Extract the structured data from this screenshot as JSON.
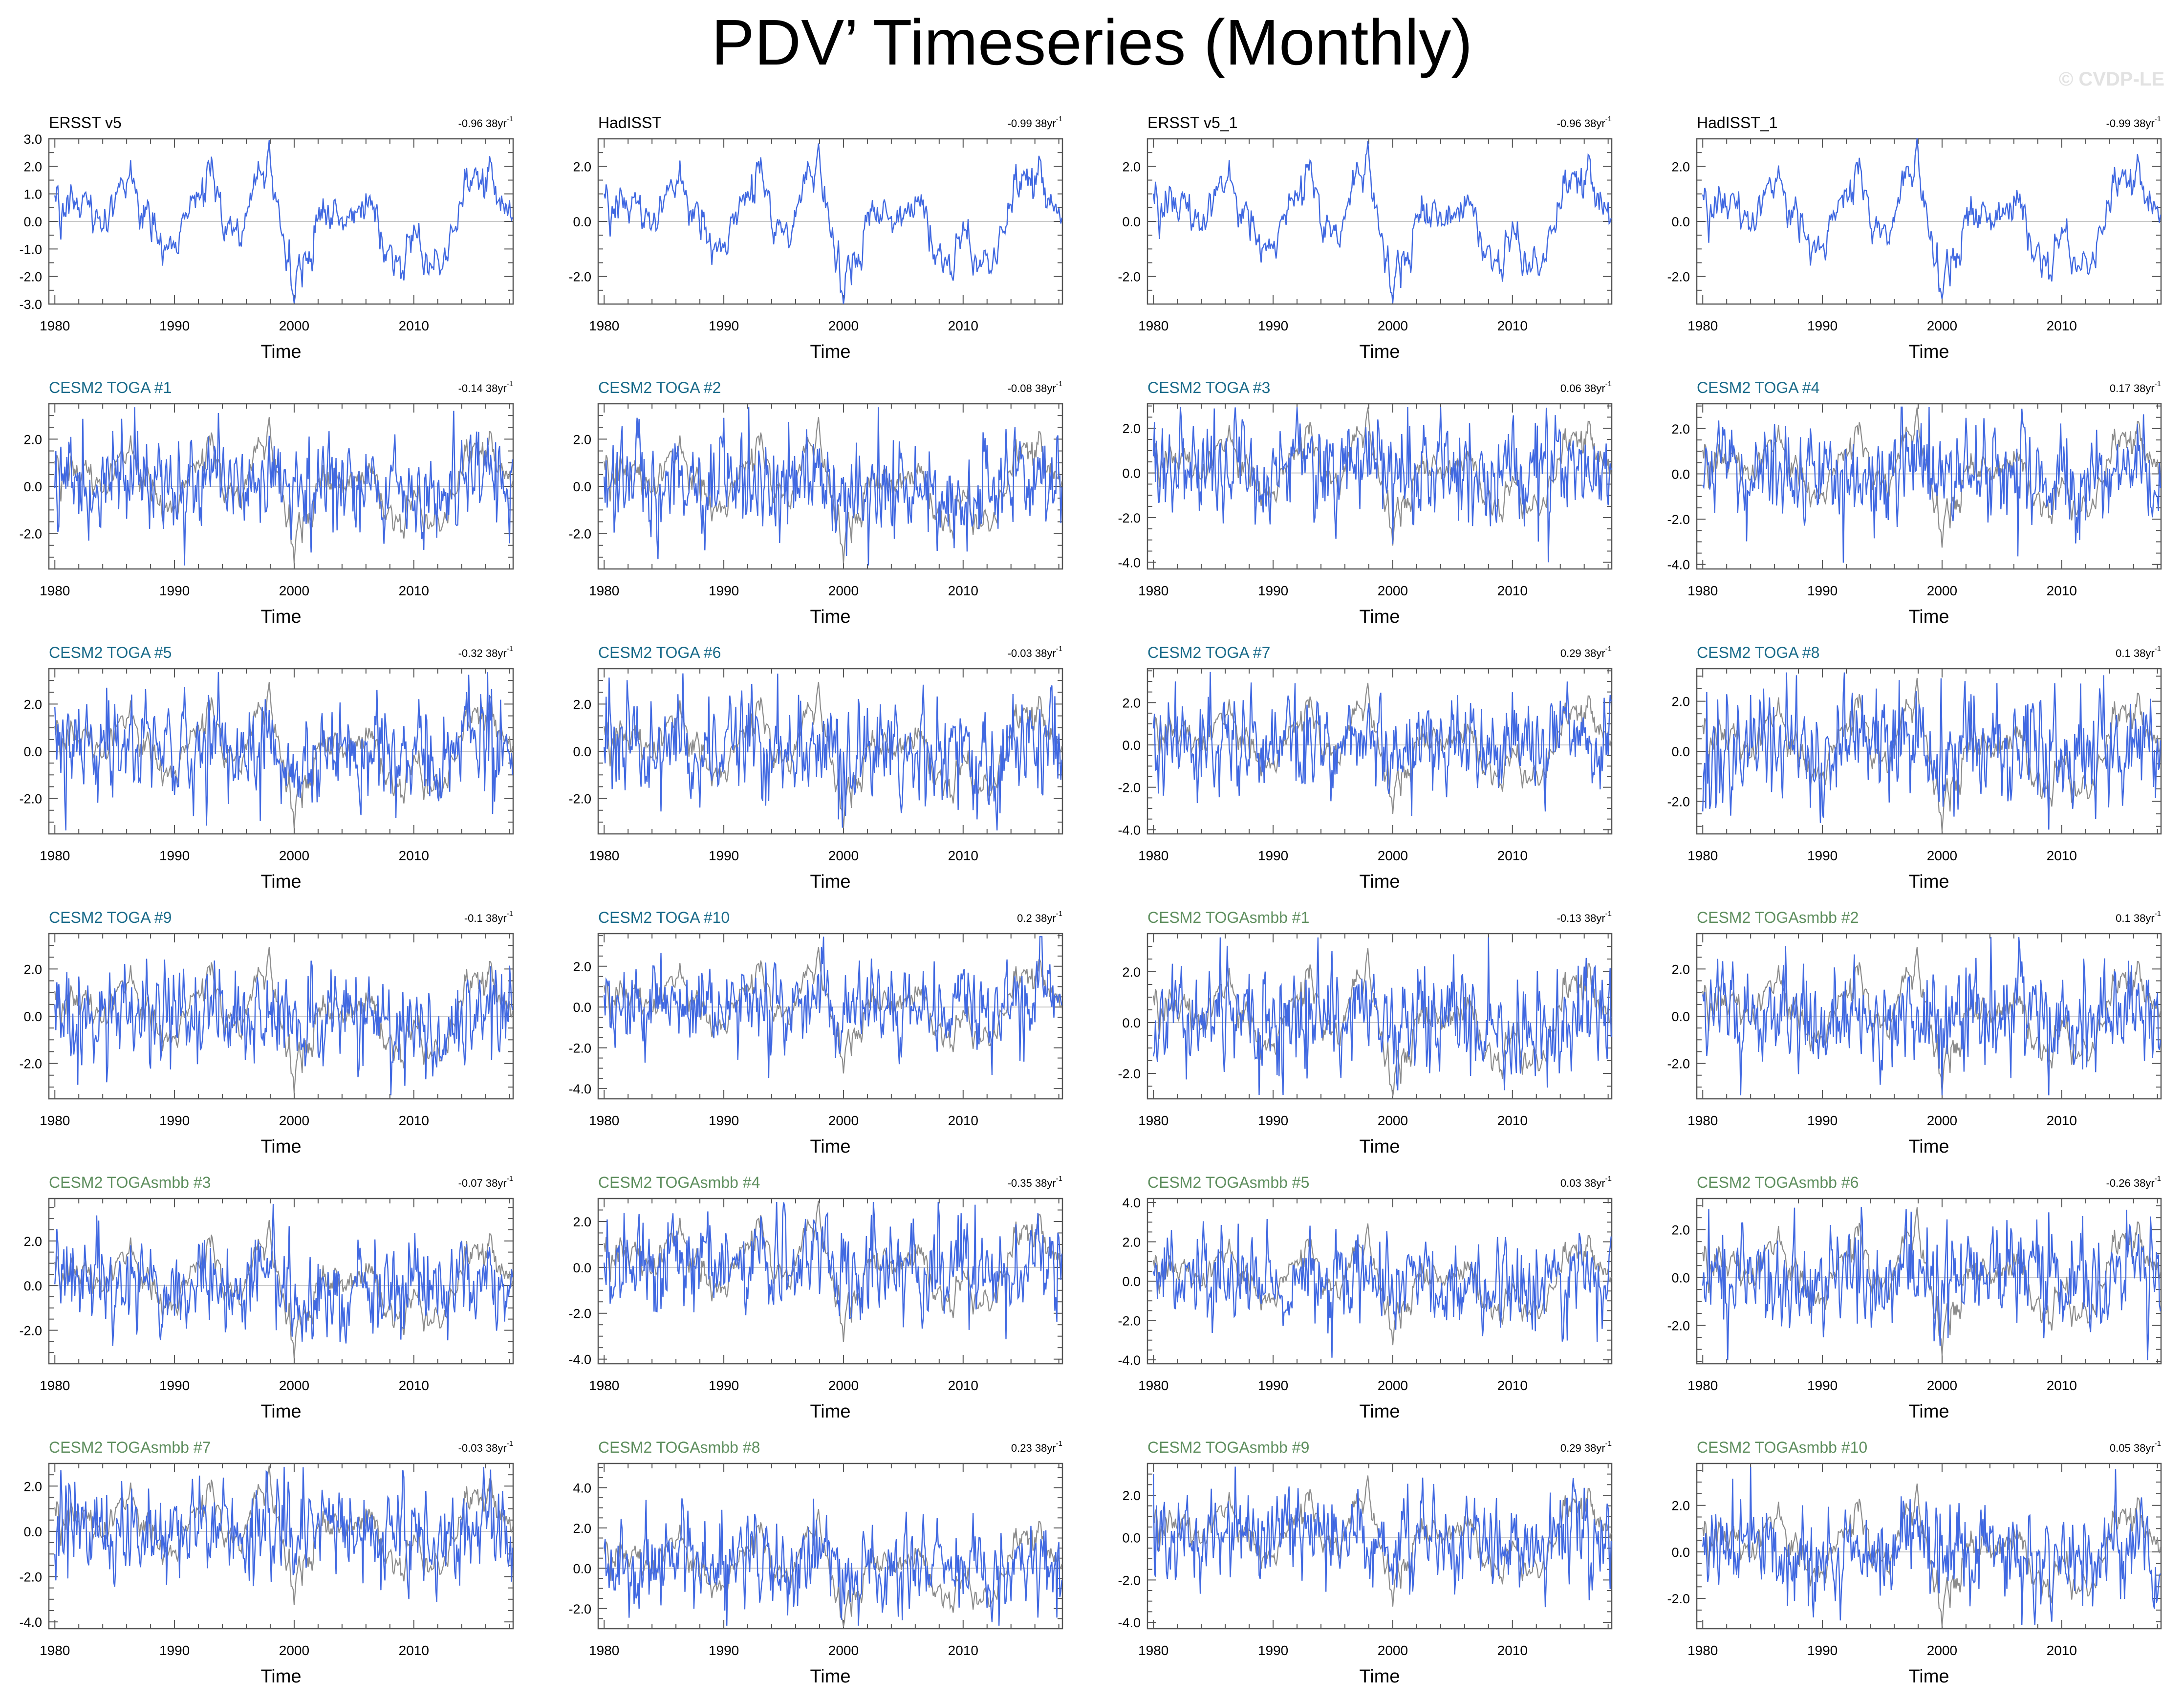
{
  "title": "PDV’ Timeseries (Monthly)",
  "copyright": "© CVDP-LE",
  "colors": {
    "series": "#4169e1",
    "observed": "#8c8c8c",
    "zero_line": "#c8c8c8",
    "obs_label": "#000000",
    "toga_label": "#1a6b8a",
    "togasmbb_label": "#5f8f5f"
  },
  "chart_data": [
    {
      "type": "line",
      "title": "ERSST v5",
      "trend": "-0.96 38yr",
      "trend_exp": "-1",
      "label_group": "obs",
      "xlabel": "Time",
      "xlim": [
        1979.5,
        2018.3
      ],
      "xticks": [
        1980,
        1990,
        2000,
        2010
      ],
      "ylim": [
        -3,
        3
      ],
      "yticks": [
        "3.0",
        "2.0",
        "1.0",
        "0.0",
        "-1.0",
        "-2.0",
        "-3.0"
      ],
      "ytick_values": [
        3,
        2,
        1,
        0,
        -1,
        -2,
        -3
      ],
      "seed": 11,
      "noise": 0.25,
      "obs_weight": 1.0,
      "spikes": 0
    },
    {
      "type": "line",
      "title": "HadISST",
      "trend": "-0.99 38yr",
      "trend_exp": "-1",
      "label_group": "obs",
      "xlabel": "Time",
      "xlim": [
        1979.5,
        2018.3
      ],
      "xticks": [
        1980,
        1990,
        2000,
        2010
      ],
      "ylim": [
        -3,
        3
      ],
      "yticks": [
        "2.0",
        "0.0",
        "-2.0"
      ],
      "ytick_values": [
        2,
        0,
        -2
      ],
      "seed": 12,
      "noise": 0.25,
      "obs_weight": 1.0,
      "spikes": 0
    },
    {
      "type": "line",
      "title": "ERSST v5_1",
      "trend": "-0.96 38yr",
      "trend_exp": "-1",
      "label_group": "obs",
      "xlabel": "Time",
      "xlim": [
        1979.5,
        2018.3
      ],
      "xticks": [
        1980,
        1990,
        2000,
        2010
      ],
      "ylim": [
        -3,
        3
      ],
      "yticks": [
        "2.0",
        "0.0",
        "-2.0"
      ],
      "ytick_values": [
        2,
        0,
        -2
      ],
      "seed": 13,
      "noise": 0.25,
      "obs_weight": 1.0,
      "spikes": 0
    },
    {
      "type": "line",
      "title": "HadISST_1",
      "trend": "-0.99 38yr",
      "trend_exp": "-1",
      "label_group": "obs",
      "xlabel": "Time",
      "xlim": [
        1979.5,
        2018.3
      ],
      "xticks": [
        1980,
        1990,
        2000,
        2010
      ],
      "ylim": [
        -3,
        3
      ],
      "yticks": [
        "2.0",
        "0.0",
        "-2.0"
      ],
      "ytick_values": [
        2,
        0,
        -2
      ],
      "seed": 14,
      "noise": 0.25,
      "obs_weight": 1.0,
      "spikes": 0
    },
    {
      "type": "line",
      "title": "CESM2 TOGA #1",
      "trend": "-0.14 38yr",
      "trend_exp": "-1",
      "label_group": "toga",
      "xlabel": "Time",
      "xlim": [
        1979.5,
        2018.3
      ],
      "xticks": [
        1980,
        1990,
        2000,
        2010
      ],
      "ylim": [
        -3.5,
        3.5
      ],
      "yticks": [
        "2.0",
        "0.0",
        "-2.0"
      ],
      "ytick_values": [
        2,
        0,
        -2
      ],
      "seed": 21,
      "noise": 1.0,
      "obs_weight": 0.2,
      "spikes": 12
    },
    {
      "type": "line",
      "title": "CESM2 TOGA #2",
      "trend": "-0.08 38yr",
      "trend_exp": "-1",
      "label_group": "toga",
      "xlabel": "Time",
      "xlim": [
        1979.5,
        2018.3
      ],
      "xticks": [
        1980,
        1990,
        2000,
        2010
      ],
      "ylim": [
        -3.5,
        3.5
      ],
      "yticks": [
        "2.0",
        "0.0",
        "-2.0"
      ],
      "ytick_values": [
        2,
        0,
        -2
      ],
      "seed": 22,
      "noise": 1.0,
      "obs_weight": 0.2,
      "spikes": 12
    },
    {
      "type": "line",
      "title": "CESM2 TOGA #3",
      "trend": "0.06 38yr",
      "trend_exp": "-1",
      "label_group": "toga",
      "xlabel": "Time",
      "xlim": [
        1979.5,
        2018.3
      ],
      "xticks": [
        1980,
        1990,
        2000,
        2010
      ],
      "ylim": [
        -4.3,
        3.1
      ],
      "yticks": [
        "2.0",
        "0.0",
        "-2.0",
        "-4.0"
      ],
      "ytick_values": [
        2,
        0,
        -2,
        -4
      ],
      "seed": 23,
      "noise": 1.0,
      "obs_weight": 0.2,
      "spikes": 14
    },
    {
      "type": "line",
      "title": "CESM2 TOGA #4",
      "trend": "0.17 38yr",
      "trend_exp": "-1",
      "label_group": "toga",
      "xlabel": "Time",
      "xlim": [
        1979.5,
        2018.3
      ],
      "xticks": [
        1980,
        1990,
        2000,
        2010
      ],
      "ylim": [
        -4.2,
        3.1
      ],
      "yticks": [
        "2.0",
        "0.0",
        "-2.0",
        "-4.0"
      ],
      "ytick_values": [
        2,
        0,
        -2,
        -4
      ],
      "seed": 24,
      "noise": 1.0,
      "obs_weight": 0.2,
      "spikes": 14
    },
    {
      "type": "line",
      "title": "CESM2 TOGA #5",
      "trend": "-0.32 38yr",
      "trend_exp": "-1",
      "label_group": "toga",
      "xlabel": "Time",
      "xlim": [
        1979.5,
        2018.3
      ],
      "xticks": [
        1980,
        1990,
        2000,
        2010
      ],
      "ylim": [
        -3.5,
        3.5
      ],
      "yticks": [
        "2.0",
        "0.0",
        "-2.0"
      ],
      "ytick_values": [
        2,
        0,
        -2
      ],
      "seed": 25,
      "noise": 1.0,
      "obs_weight": 0.2,
      "spikes": 12
    },
    {
      "type": "line",
      "title": "CESM2 TOGA #6",
      "trend": "-0.03 38yr",
      "trend_exp": "-1",
      "label_group": "toga",
      "xlabel": "Time",
      "xlim": [
        1979.5,
        2018.3
      ],
      "xticks": [
        1980,
        1990,
        2000,
        2010
      ],
      "ylim": [
        -3.5,
        3.5
      ],
      "yticks": [
        "2.0",
        "0.0",
        "-2.0"
      ],
      "ytick_values": [
        2,
        0,
        -2
      ],
      "seed": 26,
      "noise": 1.0,
      "obs_weight": 0.2,
      "spikes": 12
    },
    {
      "type": "line",
      "title": "CESM2 TOGA #7",
      "trend": "0.29 38yr",
      "trend_exp": "-1",
      "label_group": "toga",
      "xlabel": "Time",
      "xlim": [
        1979.5,
        2018.3
      ],
      "xticks": [
        1980,
        1990,
        2000,
        2010
      ],
      "ylim": [
        -4.2,
        3.6
      ],
      "yticks": [
        "2.0",
        "0.0",
        "-2.0",
        "-4.0"
      ],
      "ytick_values": [
        2,
        0,
        -2,
        -4
      ],
      "seed": 27,
      "noise": 1.0,
      "obs_weight": 0.2,
      "spikes": 14
    },
    {
      "type": "line",
      "title": "CESM2 TOGA #8",
      "trend": "0.1 38yr",
      "trend_exp": "-1",
      "label_group": "toga",
      "xlabel": "Time",
      "xlim": [
        1979.5,
        2018.3
      ],
      "xticks": [
        1980,
        1990,
        2000,
        2010
      ],
      "ylim": [
        -3.3,
        3.3
      ],
      "yticks": [
        "2.0",
        "0.0",
        "-2.0"
      ],
      "ytick_values": [
        2,
        0,
        -2
      ],
      "seed": 28,
      "noise": 1.0,
      "obs_weight": 0.2,
      "spikes": 12
    },
    {
      "type": "line",
      "title": "CESM2 TOGA #9",
      "trend": "-0.1 38yr",
      "trend_exp": "-1",
      "label_group": "toga",
      "xlabel": "Time",
      "xlim": [
        1979.5,
        2018.3
      ],
      "xticks": [
        1980,
        1990,
        2000,
        2010
      ],
      "ylim": [
        -3.5,
        3.5
      ],
      "yticks": [
        "2.0",
        "0.0",
        "-2.0"
      ],
      "ytick_values": [
        2,
        0,
        -2
      ],
      "seed": 29,
      "noise": 1.0,
      "obs_weight": 0.2,
      "spikes": 12
    },
    {
      "type": "line",
      "title": "CESM2 TOGA #10",
      "trend": "0.2 38yr",
      "trend_exp": "-1",
      "label_group": "toga",
      "xlabel": "Time",
      "xlim": [
        1979.5,
        2018.3
      ],
      "xticks": [
        1980,
        1990,
        2000,
        2010
      ],
      "ylim": [
        -4.5,
        3.6
      ],
      "yticks": [
        "2.0",
        "0.0",
        "-2.0",
        "-4.0"
      ],
      "ytick_values": [
        2,
        0,
        -2,
        -4
      ],
      "seed": 30,
      "noise": 1.0,
      "obs_weight": 0.2,
      "spikes": 14
    },
    {
      "type": "line",
      "title": "CESM2 TOGAsmbb #1",
      "trend": "-0.13 38yr",
      "trend_exp": "-1",
      "label_group": "togasmbb",
      "xlabel": "Time",
      "xlim": [
        1979.5,
        2018.3
      ],
      "xticks": [
        1980,
        1990,
        2000,
        2010
      ],
      "ylim": [
        -3.0,
        3.5
      ],
      "yticks": [
        "2.0",
        "0.0",
        "-2.0"
      ],
      "ytick_values": [
        2,
        0,
        -2
      ],
      "seed": 31,
      "noise": 1.0,
      "obs_weight": 0.2,
      "spikes": 12
    },
    {
      "type": "line",
      "title": "CESM2 TOGAsmbb #2",
      "trend": "0.1 38yr",
      "trend_exp": "-1",
      "label_group": "togasmbb",
      "xlabel": "Time",
      "xlim": [
        1979.5,
        2018.3
      ],
      "xticks": [
        1980,
        1990,
        2000,
        2010
      ],
      "ylim": [
        -3.5,
        3.5
      ],
      "yticks": [
        "2.0",
        "0.0",
        "-2.0"
      ],
      "ytick_values": [
        2,
        0,
        -2
      ],
      "seed": 32,
      "noise": 1.0,
      "obs_weight": 0.2,
      "spikes": 12
    },
    {
      "type": "line",
      "title": "CESM2 TOGAsmbb #3",
      "trend": "-0.07 38yr",
      "trend_exp": "-1",
      "label_group": "togasmbb",
      "xlabel": "Time",
      "xlim": [
        1979.5,
        2018.3
      ],
      "xticks": [
        1980,
        1990,
        2000,
        2010
      ],
      "ylim": [
        -3.5,
        3.9
      ],
      "yticks": [
        "2.0",
        "0.0",
        "-2.0"
      ],
      "ytick_values": [
        2,
        0,
        -2
      ],
      "seed": 33,
      "noise": 1.0,
      "obs_weight": 0.2,
      "spikes": 12
    },
    {
      "type": "line",
      "title": "CESM2 TOGAsmbb #4",
      "trend": "-0.35 38yr",
      "trend_exp": "-1",
      "label_group": "togasmbb",
      "xlabel": "Time",
      "xlim": [
        1979.5,
        2018.3
      ],
      "xticks": [
        1980,
        1990,
        2000,
        2010
      ],
      "ylim": [
        -4.2,
        3.0
      ],
      "yticks": [
        "2.0",
        "0.0",
        "-2.0",
        "-4.0"
      ],
      "ytick_values": [
        2,
        0,
        -2,
        -4
      ],
      "seed": 34,
      "noise": 1.0,
      "obs_weight": 0.2,
      "spikes": 14
    },
    {
      "type": "line",
      "title": "CESM2 TOGAsmbb #5",
      "trend": "0.03 38yr",
      "trend_exp": "-1",
      "label_group": "togasmbb",
      "xlabel": "Time",
      "xlim": [
        1979.5,
        2018.3
      ],
      "xticks": [
        1980,
        1990,
        2000,
        2010
      ],
      "ylim": [
        -4.2,
        4.2
      ],
      "yticks": [
        "4.0",
        "2.0",
        "0.0",
        "-2.0",
        "-4.0"
      ],
      "ytick_values": [
        4,
        2,
        0,
        -2,
        -4
      ],
      "seed": 35,
      "noise": 1.0,
      "obs_weight": 0.2,
      "spikes": 14
    },
    {
      "type": "line",
      "title": "CESM2 TOGAsmbb #6",
      "trend": "-0.26 38yr",
      "trend_exp": "-1",
      "label_group": "togasmbb",
      "xlabel": "Time",
      "xlim": [
        1979.5,
        2018.3
      ],
      "xticks": [
        1980,
        1990,
        2000,
        2010
      ],
      "ylim": [
        -3.6,
        3.3
      ],
      "yticks": [
        "2.0",
        "0.0",
        "-2.0"
      ],
      "ytick_values": [
        2,
        0,
        -2
      ],
      "seed": 36,
      "noise": 1.0,
      "obs_weight": 0.2,
      "spikes": 12
    },
    {
      "type": "line",
      "title": "CESM2 TOGAsmbb #7",
      "trend": "-0.03 38yr",
      "trend_exp": "-1",
      "label_group": "togasmbb",
      "xlabel": "Time",
      "xlim": [
        1979.5,
        2018.3
      ],
      "xticks": [
        1980,
        1990,
        2000,
        2010
      ],
      "ylim": [
        -4.3,
        3.0
      ],
      "yticks": [
        "2.0",
        "0.0",
        "-2.0",
        "-4.0"
      ],
      "ytick_values": [
        2,
        0,
        -2,
        -4
      ],
      "seed": 37,
      "noise": 1.0,
      "obs_weight": 0.2,
      "spikes": 14
    },
    {
      "type": "line",
      "title": "CESM2 TOGAsmbb #8",
      "trend": "0.23 38yr",
      "trend_exp": "-1",
      "label_group": "togasmbb",
      "xlabel": "Time",
      "xlim": [
        1979.5,
        2018.3
      ],
      "xticks": [
        1980,
        1990,
        2000,
        2010
      ],
      "ylim": [
        -3.0,
        5.2
      ],
      "yticks": [
        "4.0",
        "2.0",
        "0.0",
        "-2.0"
      ],
      "ytick_values": [
        4,
        2,
        0,
        -2
      ],
      "seed": 38,
      "noise": 1.0,
      "obs_weight": 0.2,
      "spikes": 14
    },
    {
      "type": "line",
      "title": "CESM2 TOGAsmbb #9",
      "trend": "0.29 38yr",
      "trend_exp": "-1",
      "label_group": "togasmbb",
      "xlabel": "Time",
      "xlim": [
        1979.5,
        2018.3
      ],
      "xticks": [
        1980,
        1990,
        2000,
        2010
      ],
      "ylim": [
        -4.3,
        3.5
      ],
      "yticks": [
        "2.0",
        "0.0",
        "-2.0",
        "-4.0"
      ],
      "ytick_values": [
        2,
        0,
        -2,
        -4
      ],
      "seed": 39,
      "noise": 1.0,
      "obs_weight": 0.2,
      "spikes": 14
    },
    {
      "type": "line",
      "title": "CESM2 TOGAsmbb #10",
      "trend": "0.05 38yr",
      "trend_exp": "-1",
      "label_group": "togasmbb",
      "xlabel": "Time",
      "xlim": [
        1979.5,
        2018.3
      ],
      "xticks": [
        1980,
        1990,
        2000,
        2010
      ],
      "ylim": [
        -3.3,
        3.8
      ],
      "yticks": [
        "2.0",
        "0.0",
        "-2.0"
      ],
      "ytick_values": [
        2,
        0,
        -2
      ],
      "seed": 40,
      "noise": 1.0,
      "obs_weight": 0.2,
      "spikes": 12
    }
  ]
}
